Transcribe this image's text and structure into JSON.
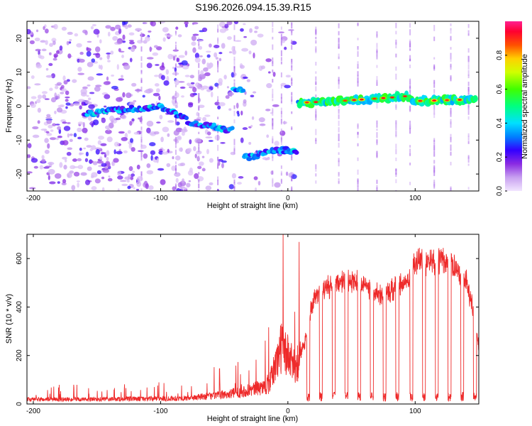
{
  "title": "S196.2026.094.15.39.R15",
  "chart_data": [
    {
      "type": "heatmap",
      "title": "S196.2026.094.15.39.R15",
      "xlabel": "Height of straight line (km)",
      "ylabel": "Frequency (Hz)",
      "xlim": [
        -205,
        150
      ],
      "ylim": [
        -25,
        25
      ],
      "xticks": [
        -200,
        -100,
        0,
        100
      ],
      "yticks": [
        20,
        10,
        0,
        -10,
        -20
      ],
      "colorbar": {
        "label": "Normalized spectral amplitude",
        "range": [
          0,
          1
        ],
        "ticks": [
          "0.0",
          "0.2",
          "0.4",
          "0.6",
          "0.8"
        ]
      },
      "ridge": [
        {
          "x": -155,
          "y": -2
        },
        {
          "x": -100,
          "y": 0
        },
        {
          "x": -75,
          "y": -5
        },
        {
          "x": -45,
          "y": -7
        },
        {
          "x": -40,
          "y": 5
        },
        {
          "x": -30,
          "y": -15
        },
        {
          "x": -20,
          "y": -14
        },
        {
          "x": -10,
          "y": -13
        },
        {
          "x": 5,
          "y": -13
        },
        {
          "x": 10,
          "y": 1
        },
        {
          "x": 40,
          "y": 1.5
        },
        {
          "x": 80,
          "y": 2.5
        },
        {
          "x": 95,
          "y": 3
        },
        {
          "x": 100,
          "y": 1.5
        },
        {
          "x": 148,
          "y": 2
        }
      ]
    },
    {
      "type": "line",
      "xlabel": "Height of straight line (km)",
      "ylabel": "SNR (10 * v/v)",
      "xlim": [
        -205,
        150
      ],
      "ylim": [
        0,
        700
      ],
      "xticks": [
        -200,
        -100,
        0,
        100
      ],
      "yticks": [
        0,
        200,
        400,
        600
      ],
      "series": [
        {
          "name": "SNR",
          "color": "#ee2a2a",
          "envelope": [
            [
              -205,
              20
            ],
            [
              -150,
              20
            ],
            [
              -80,
              25
            ],
            [
              -50,
              40
            ],
            [
              -30,
              60
            ],
            [
              -15,
              80
            ],
            [
              -5,
              250
            ],
            [
              5,
              160
            ],
            [
              10,
              200
            ],
            [
              15,
              300
            ],
            [
              20,
              450
            ],
            [
              30,
              490
            ],
            [
              45,
              520
            ],
            [
              60,
              510
            ],
            [
              75,
              450
            ],
            [
              85,
              490
            ],
            [
              95,
              530
            ],
            [
              100,
              600
            ],
            [
              110,
              600
            ],
            [
              120,
              610
            ],
            [
              130,
              580
            ],
            [
              140,
              520
            ],
            [
              145,
              420
            ],
            [
              150,
              250
            ]
          ],
          "dips": [
            16,
            26,
            36,
            46,
            56,
            66,
            76,
            86,
            97,
            107,
            117,
            127,
            137,
            147
          ]
        }
      ]
    }
  ]
}
